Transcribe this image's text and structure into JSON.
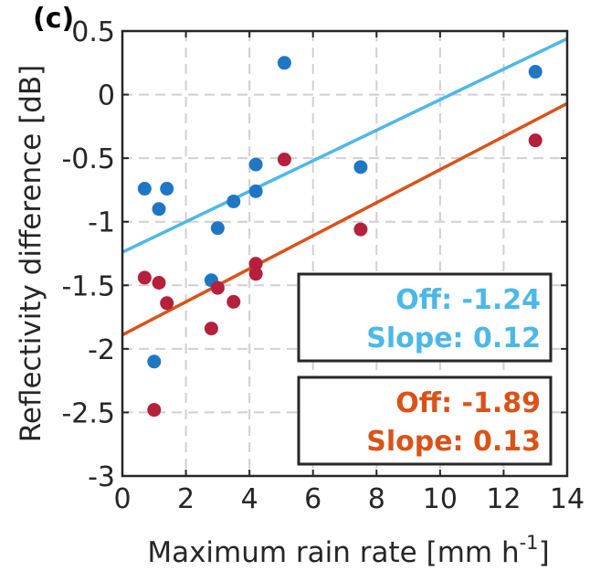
{
  "chart_data": {
    "type": "scatter",
    "title": "",
    "panel_label": "(c)",
    "xlabel": "Maximum rain rate [mm h",
    "xlabel_sup": "-1",
    "xlabel_end": "]",
    "ylabel": "Reflectivity difference [dB]",
    "xlim": [
      0,
      14
    ],
    "ylim": [
      -3,
      0.5
    ],
    "xticks": [
      0,
      2,
      4,
      6,
      8,
      10,
      12,
      14
    ],
    "xtick_labels": [
      "0",
      "2",
      "4",
      "6",
      "8",
      "10",
      "12",
      "14"
    ],
    "yticks": [
      0.5,
      0,
      -0.5,
      -1,
      -1.5,
      -2,
      -2.5,
      -3
    ],
    "ytick_labels": [
      "0.5",
      "0",
      "-0.5",
      "-1",
      "-1.5",
      "-2",
      "-2.5",
      "-3"
    ],
    "grid": true,
    "series": [
      {
        "color": "#1f77c4",
        "line_color": "#4db8e8",
        "points": [
          {
            "x": 0.7,
            "y": -0.74
          },
          {
            "x": 1.0,
            "y": -2.1
          },
          {
            "x": 1.15,
            "y": -0.9
          },
          {
            "x": 1.4,
            "y": -0.74
          },
          {
            "x": 2.8,
            "y": -1.46
          },
          {
            "x": 3.0,
            "y": -1.05
          },
          {
            "x": 3.5,
            "y": -0.84
          },
          {
            "x": 4.2,
            "y": -0.55
          },
          {
            "x": 4.2,
            "y": -0.76
          },
          {
            "x": 5.1,
            "y": 0.25
          },
          {
            "x": 7.5,
            "y": -0.57
          },
          {
            "x": 13.0,
            "y": 0.18
          }
        ],
        "fit": {
          "offset": -1.24,
          "slope": 0.12
        },
        "off_label": "Off: -1.24",
        "slope_label": "Slope: 0.12"
      },
      {
        "color": "#b5203c",
        "line_color": "#d95319",
        "points": [
          {
            "x": 0.7,
            "y": -1.44
          },
          {
            "x": 1.0,
            "y": -2.48
          },
          {
            "x": 1.15,
            "y": -1.48
          },
          {
            "x": 1.4,
            "y": -1.64
          },
          {
            "x": 2.8,
            "y": -1.84
          },
          {
            "x": 3.0,
            "y": -1.52
          },
          {
            "x": 3.5,
            "y": -1.63
          },
          {
            "x": 4.2,
            "y": -1.33
          },
          {
            "x": 4.2,
            "y": -1.41
          },
          {
            "x": 5.1,
            "y": -0.51
          },
          {
            "x": 7.5,
            "y": -1.06
          },
          {
            "x": 13.0,
            "y": -0.36
          }
        ],
        "fit": {
          "offset": -1.89,
          "slope": 0.13
        },
        "off_label": "Off: -1.89",
        "slope_label": "Slope: 0.13"
      }
    ]
  }
}
